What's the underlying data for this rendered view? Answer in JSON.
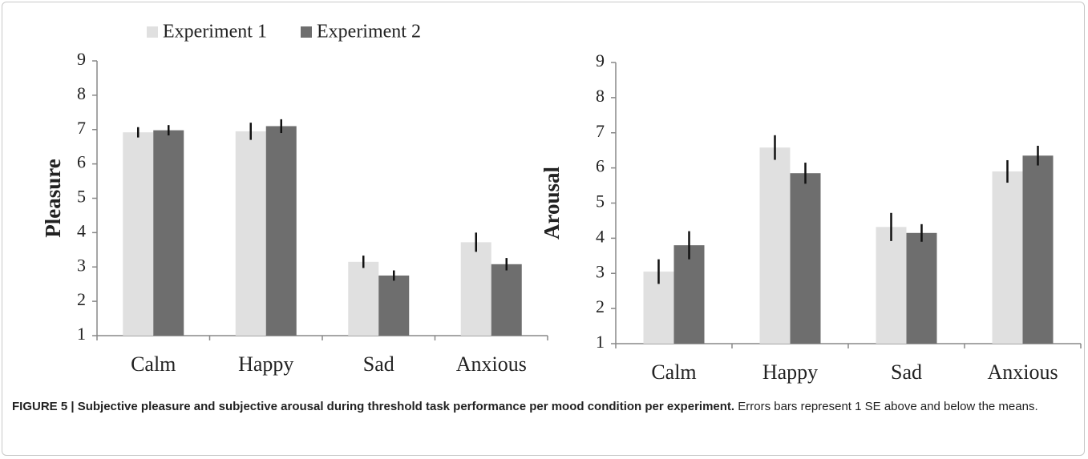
{
  "chart_data": [
    {
      "type": "bar",
      "ylabel": "Pleasure",
      "categories": [
        "Calm",
        "Happy",
        "Sad",
        "Anxious"
      ],
      "series": [
        {
          "name": "Experiment 1",
          "color": "#e0e0e0",
          "values": [
            6.92,
            6.95,
            3.15,
            3.72
          ],
          "errors": [
            0.15,
            0.25,
            0.18,
            0.28
          ]
        },
        {
          "name": "Experiment 2",
          "color": "#6e6e6e",
          "values": [
            6.98,
            7.1,
            2.75,
            3.08
          ],
          "errors": [
            0.15,
            0.2,
            0.15,
            0.18
          ]
        }
      ],
      "ylim": [
        1,
        9
      ],
      "yticks": [
        1,
        2,
        3,
        4,
        5,
        6,
        7,
        8,
        9
      ],
      "legend": "top"
    },
    {
      "type": "bar",
      "ylabel": "Arousal",
      "categories": [
        "Calm",
        "Happy",
        "Sad",
        "Anxious"
      ],
      "series": [
        {
          "color": "#e0e0e0",
          "values": [
            3.05,
            6.58,
            4.32,
            5.9
          ],
          "errors": [
            0.35,
            0.35,
            0.4,
            0.32
          ]
        },
        {
          "color": "#6e6e6e",
          "values": [
            3.8,
            5.85,
            4.15,
            6.35
          ],
          "errors": [
            0.4,
            0.3,
            0.25,
            0.28
          ]
        }
      ],
      "ylim": [
        1,
        9
      ],
      "yticks": [
        1,
        2,
        3,
        4,
        5,
        6,
        7,
        8,
        9
      ]
    }
  ],
  "caption": {
    "title": "FIGURE 5 | Subjective pleasure and subjective arousal during threshold task performance per mood condition per experiment.",
    "text": "Errors bars represent 1 SE above and below the means."
  }
}
